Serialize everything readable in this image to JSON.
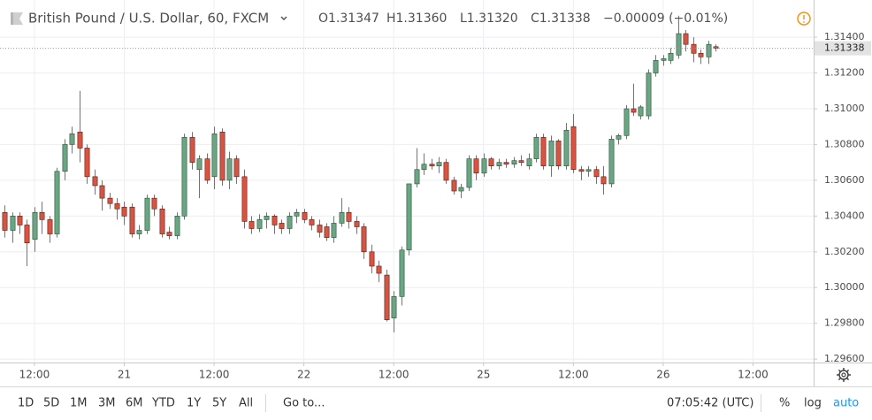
{
  "chart_data": {
    "type": "candlestick",
    "title": "British Pound / U.S. Dollar, 60, FXCM",
    "ohlc_labels": [
      "O1.31347",
      "H1.31360",
      "L1.31320",
      "C1.31338"
    ],
    "change_label": "−0.00009 (−0.01%)",
    "last_price": 1.31338,
    "up_color": "#6ba583",
    "down_color": "#d75442",
    "wick_color": "#737375",
    "grid": true,
    "xlim": [
      -0.6,
      108.1
    ],
    "xticks": [
      {
        "value": 4,
        "label": "12:00"
      },
      {
        "value": 16,
        "label": "21"
      },
      {
        "value": 28,
        "label": "12:00"
      },
      {
        "value": 40,
        "label": "22"
      },
      {
        "value": 52,
        "label": "12:00"
      },
      {
        "value": 64,
        "label": "25"
      },
      {
        "value": 76,
        "label": "12:00"
      },
      {
        "value": 88,
        "label": "26"
      },
      {
        "value": 100,
        "label": "12:00"
      }
    ],
    "ylim": [
      1.29581,
      1.31608
    ],
    "yticks": [
      {
        "value": 1.296,
        "label": "1.29600"
      },
      {
        "value": 1.298,
        "label": "1.29800"
      },
      {
        "value": 1.3,
        "label": "1.30000"
      },
      {
        "value": 1.302,
        "label": "1.30200"
      },
      {
        "value": 1.304,
        "label": "1.30400"
      },
      {
        "value": 1.306,
        "label": "1.30600"
      },
      {
        "value": 1.308,
        "label": "1.30800"
      },
      {
        "value": 1.31,
        "label": "1.31000"
      },
      {
        "value": 1.312,
        "label": "1.31200"
      },
      {
        "value": 1.314,
        "label": "1.31400"
      }
    ],
    "open": [
      1.3042,
      1.3032,
      1.304,
      1.3035,
      1.3027,
      1.3042,
      1.3038,
      1.303,
      1.3065,
      1.308,
      1.3087,
      1.3078,
      1.3062,
      1.3057,
      1.305,
      1.3047,
      1.3045,
      1.3045,
      1.303,
      1.3032,
      1.305,
      1.3044,
      1.3031,
      1.3029,
      1.304,
      1.3084,
      1.3066,
      1.3072,
      1.3062,
      1.3087,
      1.306,
      1.3072,
      1.3062,
      1.3037,
      1.3033,
      1.3038,
      1.304,
      1.3036,
      1.3033,
      1.304,
      1.3042,
      1.3038,
      1.3035,
      1.3034,
      1.3028,
      1.3036,
      1.3042,
      1.3037,
      1.3034,
      1.302,
      1.3012,
      1.3007,
      1.2983,
      1.2995,
      1.3021,
      1.3058,
      1.3066,
      1.3069,
      1.3068,
      1.307,
      1.306,
      1.3054,
      1.3056,
      1.3072,
      1.3064,
      1.3072,
      1.3068,
      1.307,
      1.3069,
      1.3071,
      1.3068,
      1.3072,
      1.3084,
      1.3068,
      1.3082,
      1.3068,
      1.309,
      1.3066,
      1.3065,
      1.3066,
      1.3062,
      1.3058,
      1.3083,
      1.3085,
      1.31,
      1.3096,
      1.3096,
      1.312,
      1.3127,
      1.3127,
      1.313,
      1.3142,
      1.3136,
      1.3131,
      1.3129,
      1.31347
    ],
    "high": [
      1.3046,
      1.3042,
      1.3042,
      1.3038,
      1.3045,
      1.3048,
      1.304,
      1.3067,
      1.3083,
      1.309,
      1.311,
      1.308,
      1.3066,
      1.306,
      1.3053,
      1.305,
      1.3048,
      1.3047,
      1.3035,
      1.3052,
      1.3052,
      1.3046,
      1.3034,
      1.3042,
      1.3086,
      1.3087,
      1.3074,
      1.3075,
      1.309,
      1.3089,
      1.3076,
      1.3074,
      1.3066,
      1.304,
      1.3041,
      1.3042,
      1.3041,
      1.3038,
      1.3042,
      1.3044,
      1.3044,
      1.304,
      1.3038,
      1.3036,
      1.304,
      1.305,
      1.3045,
      1.304,
      1.3036,
      1.3024,
      1.3015,
      1.301,
      1.2998,
      1.3023,
      1.3058,
      1.3078,
      1.3075,
      1.3072,
      1.3073,
      1.3072,
      1.3062,
      1.3058,
      1.3074,
      1.3074,
      1.3075,
      1.3073,
      1.3072,
      1.3072,
      1.3073,
      1.3074,
      1.3075,
      1.3086,
      1.3086,
      1.3085,
      1.3083,
      1.3092,
      1.3097,
      1.3068,
      1.3068,
      1.3068,
      1.3068,
      1.3085,
      1.3086,
      1.3102,
      1.3114,
      1.3102,
      1.3122,
      1.313,
      1.313,
      1.3134,
      1.3152,
      1.3144,
      1.314,
      1.3133,
      1.3138,
      1.3136
    ],
    "low": [
      1.3028,
      1.3025,
      1.303,
      1.3012,
      1.302,
      1.303,
      1.3025,
      1.3028,
      1.306,
      1.3075,
      1.307,
      1.3058,
      1.3052,
      1.3043,
      1.3044,
      1.3038,
      1.3035,
      1.3028,
      1.3027,
      1.303,
      1.304,
      1.3028,
      1.3027,
      1.3027,
      1.3038,
      1.3066,
      1.305,
      1.3058,
      1.3055,
      1.3057,
      1.3055,
      1.3058,
      1.3033,
      1.303,
      1.3031,
      1.3033,
      1.303,
      1.303,
      1.303,
      1.3036,
      1.3036,
      1.3032,
      1.3028,
      1.3026,
      1.3025,
      1.3034,
      1.3033,
      1.303,
      1.3016,
      1.3008,
      1.3003,
      1.2981,
      1.2975,
      1.299,
      1.3018,
      1.3056,
      1.3063,
      1.3066,
      1.3064,
      1.3058,
      1.3052,
      1.305,
      1.3054,
      1.306,
      1.3062,
      1.3066,
      1.3066,
      1.3067,
      1.3067,
      1.3068,
      1.3066,
      1.307,
      1.3066,
      1.3062,
      1.3066,
      1.3066,
      1.3064,
      1.306,
      1.3062,
      1.3058,
      1.3052,
      1.3056,
      1.308,
      1.3083,
      1.3096,
      1.3094,
      1.3094,
      1.3118,
      1.3124,
      1.3125,
      1.3128,
      1.3132,
      1.3126,
      1.3125,
      1.3125,
      1.3132
    ],
    "close": [
      1.3032,
      1.304,
      1.3035,
      1.3025,
      1.3042,
      1.3038,
      1.303,
      1.3065,
      1.308,
      1.3086,
      1.3078,
      1.3062,
      1.3057,
      1.305,
      1.3047,
      1.3044,
      1.304,
      1.303,
      1.3032,
      1.305,
      1.3044,
      1.303,
      1.3029,
      1.304,
      1.3084,
      1.307,
      1.3072,
      1.306,
      1.3086,
      1.306,
      1.3072,
      1.3062,
      1.3037,
      1.3033,
      1.3038,
      1.304,
      1.3035,
      1.3033,
      1.304,
      1.3042,
      1.3038,
      1.3035,
      1.3031,
      1.3028,
      1.3036,
      1.3042,
      1.3037,
      1.3034,
      1.302,
      1.3012,
      1.3008,
      1.2982,
      1.2995,
      1.3021,
      1.3058,
      1.3066,
      1.3069,
      1.3068,
      1.307,
      1.306,
      1.3054,
      1.3056,
      1.3072,
      1.3064,
      1.3072,
      1.3068,
      1.307,
      1.3069,
      1.3071,
      1.307,
      1.3072,
      1.3084,
      1.3068,
      1.3082,
      1.3068,
      1.3088,
      1.3066,
      1.3065,
      1.3066,
      1.3062,
      1.3058,
      1.3083,
      1.3085,
      1.31,
      1.3098,
      1.3101,
      1.312,
      1.3127,
      1.3128,
      1.3131,
      1.3142,
      1.3136,
      1.3131,
      1.3129,
      1.3136,
      1.31338
    ]
  },
  "toolbar": {
    "ranges": [
      "1D",
      "5D",
      "1M",
      "3M",
      "6M",
      "YTD",
      "1Y",
      "5Y",
      "All"
    ],
    "goto": "Go to...",
    "clock": "07:05:42 (UTC)",
    "percent": "%",
    "log": "log",
    "auto": "auto"
  }
}
